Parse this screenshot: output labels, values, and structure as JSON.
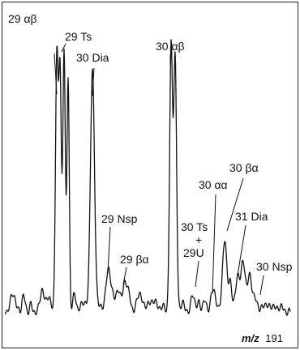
{
  "chart_data": {
    "type": "line",
    "ion_label": {
      "prefix": "m/z",
      "value": "191"
    },
    "peaks": [
      {
        "label": "29 αβ",
        "label_lines": [
          "29 αβ"
        ]
      },
      {
        "label": "29 Ts",
        "label_lines": [
          "29 Ts"
        ]
      },
      {
        "label": "30 Dia",
        "label_lines": [
          "30 Dia"
        ]
      },
      {
        "label": "29 Nsp",
        "label_lines": [
          "29 Nsp"
        ]
      },
      {
        "label": "29 βα",
        "label_lines": [
          "29 βα"
        ]
      },
      {
        "label": "30 αβ",
        "label_lines": [
          "30 αβ"
        ]
      },
      {
        "label": "30 Ts + 29U",
        "label_lines": [
          "30 Ts",
          "+",
          "29U"
        ]
      },
      {
        "label": "30 αα",
        "label_lines": [
          "30 αα"
        ]
      },
      {
        "label": "30 βα",
        "label_lines": [
          "30 βα"
        ]
      },
      {
        "label": "31 Dia",
        "label_lines": [
          "31 Dia"
        ]
      },
      {
        "label": "30 Nsp",
        "label_lines": [
          "30 Nsp"
        ]
      }
    ],
    "colors": {
      "trace": "#111111",
      "frame": "#222222",
      "background": "#ffffff"
    }
  }
}
